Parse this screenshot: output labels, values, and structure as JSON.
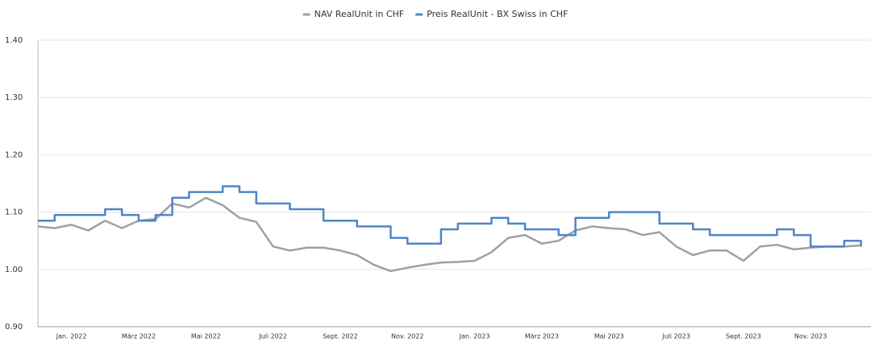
{
  "chart_data": {
    "type": "line",
    "categories": [
      null,
      null,
      "Jan. 2022",
      null,
      null,
      null,
      "März 2022",
      null,
      null,
      null,
      "Mai 2022",
      null,
      null,
      null,
      "Juli 2022",
      null,
      null,
      null,
      "Sept. 2022",
      null,
      null,
      null,
      "Nov. 2022",
      null,
      null,
      null,
      "Jan. 2023",
      null,
      null,
      null,
      "März 2023",
      null,
      null,
      null,
      "Mai 2023",
      null,
      null,
      null,
      "Juli 2023",
      null,
      null,
      null,
      "Sept. 2023",
      null,
      null,
      null,
      "Nov. 2023",
      null,
      null,
      null
    ],
    "series": [
      {
        "name": "NAV RealUnit in CHF",
        "color": "#a0a0a0",
        "step": false,
        "values": [
          1.075,
          1.072,
          1.078,
          1.068,
          1.085,
          1.072,
          1.085,
          1.088,
          1.115,
          1.108,
          1.125,
          1.112,
          1.09,
          1.083,
          1.04,
          1.033,
          1.038,
          1.038,
          1.033,
          1.025,
          1.008,
          0.997,
          1.003,
          1.008,
          1.012,
          1.013,
          1.015,
          1.03,
          1.055,
          1.06,
          1.045,
          1.05,
          1.068,
          1.075,
          1.072,
          1.07,
          1.06,
          1.065,
          1.04,
          1.025,
          1.033,
          1.033,
          1.015,
          1.04,
          1.043,
          1.035,
          1.038,
          1.04,
          1.04,
          1.042
        ]
      },
      {
        "name": "Preis RealUnit - BX Swiss in CHF",
        "color": "#4f86c6",
        "step": true,
        "values": [
          1.085,
          1.095,
          1.095,
          1.095,
          1.105,
          1.095,
          1.085,
          1.095,
          1.125,
          1.135,
          1.135,
          1.145,
          1.135,
          1.115,
          1.115,
          1.105,
          1.105,
          1.085,
          1.085,
          1.075,
          1.075,
          1.055,
          1.045,
          1.045,
          1.07,
          1.08,
          1.08,
          1.09,
          1.08,
          1.07,
          1.07,
          1.06,
          1.09,
          1.09,
          1.1,
          1.1,
          1.1,
          1.08,
          1.08,
          1.07,
          1.06,
          1.06,
          1.06,
          1.06,
          1.07,
          1.06,
          1.04,
          1.04,
          1.05,
          1.04
        ]
      }
    ],
    "ylim": [
      0.9,
      1.4
    ],
    "yticks": [
      {
        "value": 0.9,
        "label": "0.90"
      },
      {
        "value": 1.0,
        "label": "1.00"
      },
      {
        "value": 1.1,
        "label": "1.10"
      },
      {
        "value": 1.2,
        "label": "1.20"
      },
      {
        "value": 1.3,
        "label": "1.30"
      },
      {
        "value": 1.4,
        "label": "1.40"
      }
    ],
    "grid": true,
    "legend": "top"
  }
}
